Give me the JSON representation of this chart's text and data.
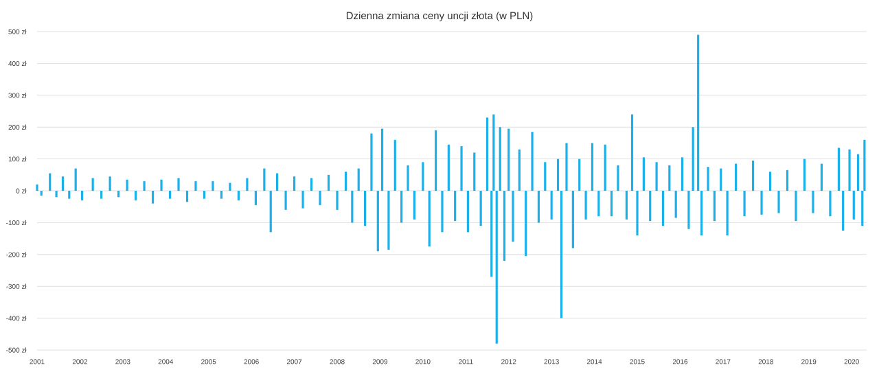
{
  "chart_data": {
    "type": "bar",
    "title": "Dzienna zmiana ceny uncji złota (w PLN)",
    "series": [
      {
        "color": "#1ab0ea",
        "x": [
          2001.0,
          2001.1,
          2001.3,
          2001.45,
          2001.6,
          2001.75,
          2001.9,
          2002.05,
          2002.3,
          2002.5,
          2002.7,
          2002.9,
          2003.1,
          2003.3,
          2003.5,
          2003.7,
          2003.9,
          2004.1,
          2004.3,
          2004.5,
          2004.7,
          2004.9,
          2005.1,
          2005.3,
          2005.5,
          2005.7,
          2005.9,
          2006.1,
          2006.3,
          2006.45,
          2006.6,
          2006.8,
          2007.0,
          2007.2,
          2007.4,
          2007.6,
          2007.8,
          2008.0,
          2008.2,
          2008.35,
          2008.5,
          2008.65,
          2008.8,
          2008.95,
          2009.05,
          2009.2,
          2009.35,
          2009.5,
          2009.65,
          2009.8,
          2010.0,
          2010.15,
          2010.3,
          2010.45,
          2010.6,
          2010.75,
          2010.9,
          2011.05,
          2011.2,
          2011.35,
          2011.5,
          2011.6,
          2011.65,
          2011.72,
          2011.8,
          2011.9,
          2012.0,
          2012.1,
          2012.25,
          2012.4,
          2012.55,
          2012.7,
          2012.85,
          2013.0,
          2013.15,
          2013.23,
          2013.35,
          2013.5,
          2013.65,
          2013.8,
          2013.95,
          2014.1,
          2014.25,
          2014.4,
          2014.55,
          2014.75,
          2014.88,
          2015.0,
          2015.15,
          2015.3,
          2015.45,
          2015.6,
          2015.75,
          2015.9,
          2016.05,
          2016.2,
          2016.3,
          2016.42,
          2016.5,
          2016.65,
          2016.8,
          2016.95,
          2017.1,
          2017.3,
          2017.5,
          2017.7,
          2017.9,
          2018.1,
          2018.3,
          2018.5,
          2018.7,
          2018.9,
          2019.1,
          2019.3,
          2019.5,
          2019.7,
          2019.8,
          2019.95,
          2020.05,
          2020.15,
          2020.25,
          2020.3
        ],
        "values": [
          20,
          -15,
          55,
          -20,
          45,
          -25,
          70,
          -30,
          40,
          -25,
          45,
          -20,
          35,
          -30,
          30,
          -40,
          35,
          -25,
          40,
          -35,
          30,
          -25,
          30,
          -25,
          25,
          -30,
          40,
          -45,
          70,
          -130,
          55,
          -60,
          45,
          -55,
          40,
          -45,
          50,
          -60,
          60,
          -100,
          70,
          -110,
          180,
          -190,
          195,
          -185,
          160,
          -100,
          80,
          -90,
          90,
          -175,
          190,
          -130,
          145,
          -95,
          140,
          -130,
          120,
          -110,
          230,
          -270,
          240,
          -480,
          200,
          -220,
          195,
          -160,
          130,
          -205,
          185,
          -100,
          90,
          -90,
          100,
          -400,
          150,
          -180,
          100,
          -90,
          150,
          -80,
          145,
          -80,
          80,
          -90,
          240,
          -140,
          105,
          -95,
          90,
          -110,
          80,
          -85,
          105,
          -120,
          200,
          490,
          -140,
          75,
          -95,
          70,
          -140,
          85,
          -80,
          95,
          -75,
          60,
          -70,
          65,
          -95,
          100,
          -70,
          85,
          -80,
          135,
          -125,
          130,
          -90,
          115,
          -110,
          160
        ]
      }
    ],
    "xlim": [
      2001,
      2020.35
    ],
    "xticks": [
      2001,
      2002,
      2003,
      2004,
      2005,
      2006,
      2007,
      2008,
      2009,
      2010,
      2011,
      2012,
      2013,
      2014,
      2015,
      2016,
      2017,
      2018,
      2019,
      2020
    ],
    "ylim": [
      -500,
      500
    ],
    "yticks": [
      {
        "value": -500,
        "label": "-500 zł"
      },
      {
        "value": -400,
        "label": "-400 zł"
      },
      {
        "value": -300,
        "label": "-300 zł"
      },
      {
        "value": -200,
        "label": "-200 zł"
      },
      {
        "value": -100,
        "label": "-100 zł"
      },
      {
        "value": 0,
        "label": "0 zł"
      },
      {
        "value": 100,
        "label": "100 zł"
      },
      {
        "value": 200,
        "label": "200 zł"
      },
      {
        "value": 300,
        "label": "300 zł"
      },
      {
        "value": 400,
        "label": "400 zł"
      },
      {
        "value": 500,
        "label": "500 zł"
      }
    ],
    "grid": "y"
  }
}
